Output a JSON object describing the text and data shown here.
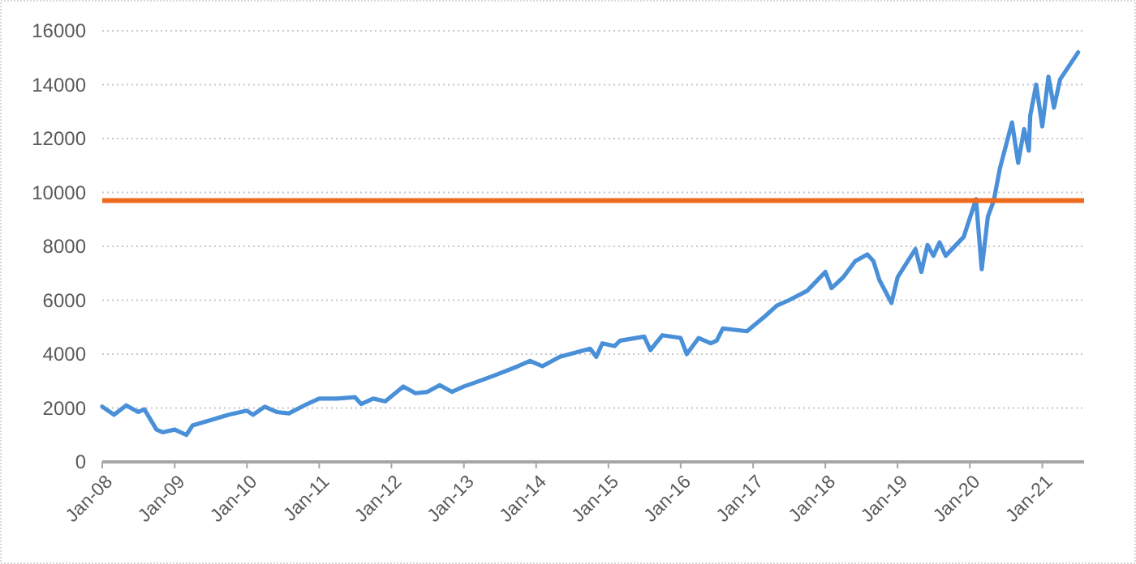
{
  "chart_data": {
    "type": "line",
    "x": [
      "2008-01-01",
      "2008-03-01",
      "2008-05-01",
      "2008-07-01",
      "2008-08-01",
      "2008-10-01",
      "2008-11-01",
      "2009-01-01",
      "2009-03-01",
      "2009-04-01",
      "2009-07-01",
      "2009-10-01",
      "2010-01-01",
      "2010-02-01",
      "2010-04-01",
      "2010-06-01",
      "2010-08-01",
      "2010-11-01",
      "2011-01-01",
      "2011-04-01",
      "2011-07-01",
      "2011-08-01",
      "2011-10-01",
      "2011-12-01",
      "2012-03-01",
      "2012-05-01",
      "2012-07-01",
      "2012-09-01",
      "2012-11-01",
      "2013-01-01",
      "2013-03-01",
      "2013-06-01",
      "2013-10-01",
      "2013-12-01",
      "2014-02-01",
      "2014-05-01",
      "2014-10-01",
      "2014-11-01",
      "2014-12-01",
      "2015-02-01",
      "2015-03-01",
      "2015-07-01",
      "2015-08-01",
      "2015-10-01",
      "2016-01-01",
      "2016-02-01",
      "2016-04-01",
      "2016-06-01",
      "2016-07-01",
      "2016-08-01",
      "2016-12-01",
      "2017-03-01",
      "2017-05-01",
      "2017-07-01",
      "2017-10-01",
      "2018-01-01",
      "2018-02-01",
      "2018-04-01",
      "2018-06-01",
      "2018-08-01",
      "2018-09-01",
      "2018-10-01",
      "2018-12-01",
      "2019-01-01",
      "2019-04-01",
      "2019-05-01",
      "2019-06-01",
      "2019-07-01",
      "2019-08-01",
      "2019-09-01",
      "2019-12-01",
      "2020-02-01",
      "2020-03-01",
      "2020-04-01",
      "2020-05-01",
      "2020-06-01",
      "2020-08-01",
      "2020-09-01",
      "2020-10-01",
      "2020-10-25",
      "2020-11-01",
      "2020-12-01",
      "2021-01-01",
      "2021-02-01",
      "2021-03-01",
      "2021-04-01",
      "2021-07-01"
    ],
    "series": [
      {
        "color": "#4a90d9",
        "values": [
          2050,
          1750,
          2100,
          1850,
          1950,
          1200,
          1100,
          1200,
          1000,
          1350,
          1550,
          1750,
          1900,
          1750,
          2050,
          1850,
          1800,
          2150,
          2350,
          2350,
          2400,
          2150,
          2350,
          2250,
          2800,
          2550,
          2600,
          2850,
          2600,
          2800,
          2950,
          3200,
          3550,
          3750,
          3550,
          3900,
          4200,
          3900,
          4400,
          4300,
          4500,
          4650,
          4150,
          4700,
          4600,
          4000,
          4600,
          4400,
          4500,
          4950,
          4850,
          5400,
          5800,
          6000,
          6350,
          7050,
          6450,
          6850,
          7450,
          7700,
          7450,
          6750,
          5900,
          6850,
          7900,
          7050,
          8050,
          7650,
          8150,
          7650,
          8350,
          9750,
          7150,
          9100,
          9700,
          10900,
          12600,
          11100,
          12350,
          11550,
          12850,
          14000,
          12450,
          14300,
          13150,
          14200,
          15200
        ]
      }
    ],
    "xlim": [
      "2008-01-01",
      "2021-07-31"
    ],
    "xticks": [
      {
        "value": "2008-01-01",
        "label": "Jan-08"
      },
      {
        "value": "2009-01-01",
        "label": "Jan-09"
      },
      {
        "value": "2010-01-01",
        "label": "Jan-10"
      },
      {
        "value": "2011-01-01",
        "label": "Jan-11"
      },
      {
        "value": "2012-01-01",
        "label": "Jan-12"
      },
      {
        "value": "2013-01-01",
        "label": "Jan-13"
      },
      {
        "value": "2014-01-01",
        "label": "Jan-14"
      },
      {
        "value": "2015-01-01",
        "label": "Jan-15"
      },
      {
        "value": "2016-01-01",
        "label": "Jan-16"
      },
      {
        "value": "2017-01-01",
        "label": "Jan-17"
      },
      {
        "value": "2018-01-01",
        "label": "Jan-18"
      },
      {
        "value": "2019-01-01",
        "label": "Jan-19"
      },
      {
        "value": "2020-01-01",
        "label": "Jan-20"
      },
      {
        "value": "2021-01-01",
        "label": "Jan-21"
      }
    ],
    "ylim": [
      0,
      16000
    ],
    "yticks": [
      0,
      2000,
      4000,
      6000,
      8000,
      10000,
      12000,
      14000,
      16000
    ],
    "grid": "y",
    "ref_lines": [
      {
        "axis": "y",
        "value": 9700,
        "color": "#ed6a1f"
      }
    ]
  }
}
